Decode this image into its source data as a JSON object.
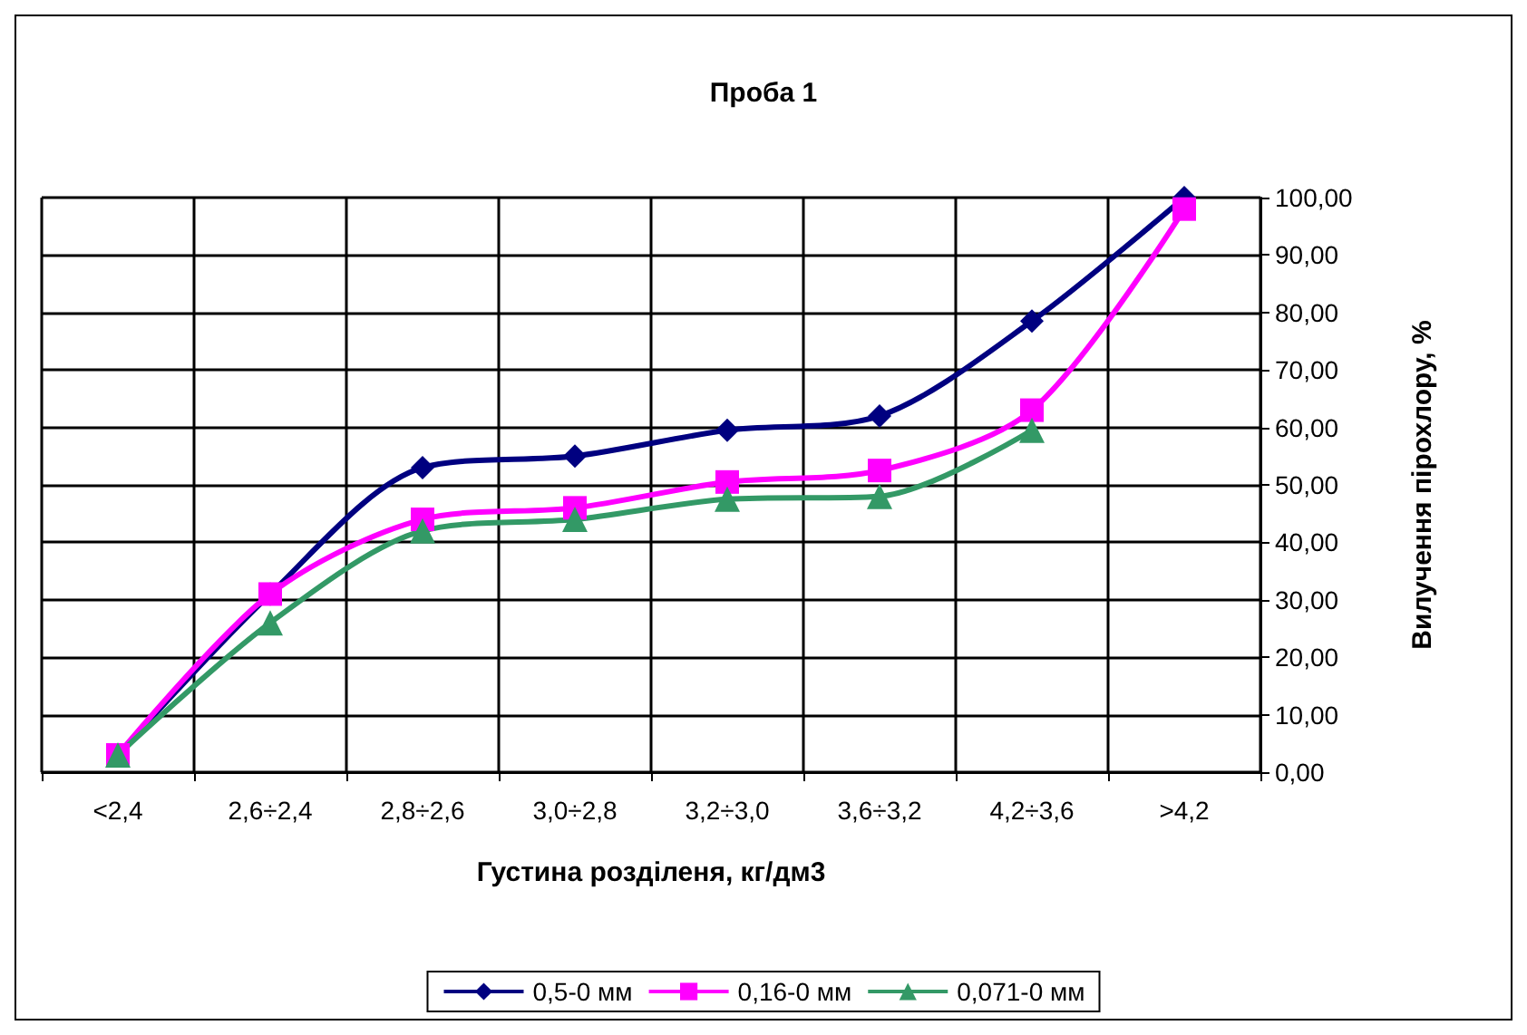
{
  "chart_data": {
    "type": "line",
    "title": "Проба 1",
    "xlabel": "Густина розділеня, кг/дм3",
    "ylabel": "Вилучення пірохлору, %",
    "categories": [
      "<2,4",
      "2,6÷2,4",
      "2,8÷2,6",
      "3,0÷2,8",
      "3,2÷3,0",
      "3,6÷3,2",
      "4,2÷3,6",
      ">4,2"
    ],
    "series": [
      {
        "name": "0,5-0 мм",
        "color": "#000080",
        "marker": "diamond",
        "values": [
          3,
          31,
          53,
          55,
          59.5,
          62,
          78.5,
          100
        ]
      },
      {
        "name": "0,16-0 мм",
        "color": "#ff00ff",
        "marker": "square",
        "values": [
          3,
          31,
          44,
          46,
          50.5,
          52.5,
          63,
          98
        ]
      },
      {
        "name": "0,071-0 мм",
        "color": "#339966",
        "marker": "triangle",
        "values": [
          3,
          26,
          42,
          44,
          47.5,
          48,
          59.5,
          null
        ]
      }
    ],
    "ylim": [
      0,
      100
    ],
    "yticks": [
      {
        "value": 0,
        "label": "0,00"
      },
      {
        "value": 10,
        "label": "10,00"
      },
      {
        "value": 20,
        "label": "20,00"
      },
      {
        "value": 30,
        "label": "30,00"
      },
      {
        "value": 40,
        "label": "40,00"
      },
      {
        "value": 50,
        "label": "50,00"
      },
      {
        "value": 60,
        "label": "60,00"
      },
      {
        "value": 70,
        "label": "70,00"
      },
      {
        "value": 80,
        "label": "80,00"
      },
      {
        "value": 90,
        "label": "90,00"
      },
      {
        "value": 100,
        "label": "100,00"
      }
    ],
    "grid": true,
    "legend": "bottom",
    "line_style": "solid"
  }
}
